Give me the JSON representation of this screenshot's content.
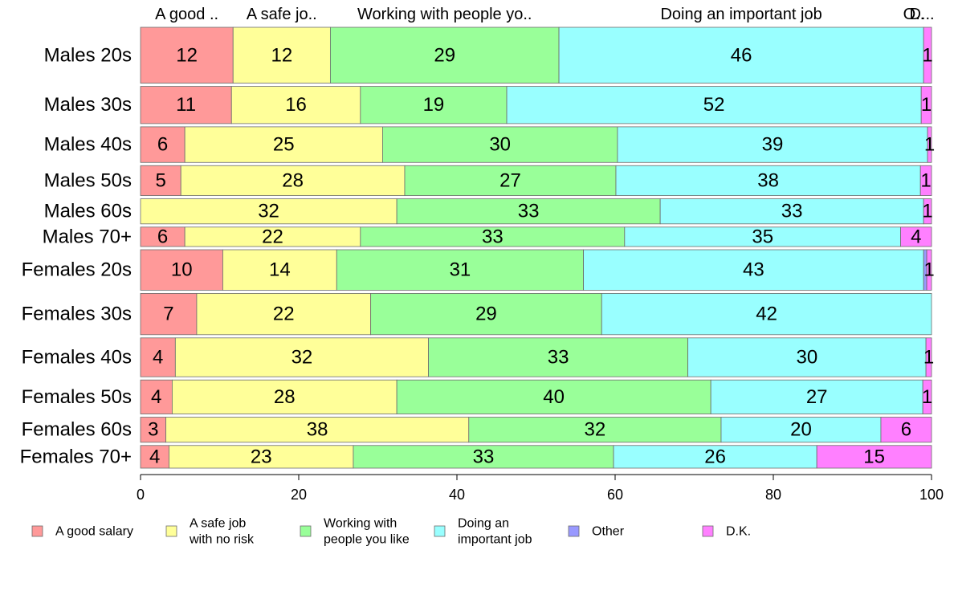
{
  "chart_data": {
    "type": "bar",
    "orientation": "horizontal",
    "stacked": true,
    "categories": [
      "Males 20s",
      "Males 30s",
      "Males 40s",
      "Males 50s",
      "Males 60s",
      "Males 70+",
      "Females 20s",
      "Females 30s",
      "Females 40s",
      "Females 50s",
      "Females 60s",
      "Females 70+"
    ],
    "row_weights": [
      69,
      46,
      44,
      37,
      31,
      24,
      50,
      51,
      48,
      42,
      31,
      28
    ],
    "series": [
      {
        "name": "A good salary",
        "legend": [
          "A good salary"
        ],
        "column_label": "A good ..",
        "color": "#ff9999",
        "values": [
          11.7,
          11.5,
          5.6,
          5.1,
          0,
          5.6,
          10.4,
          7.1,
          4.4,
          4.0,
          3.2,
          3.6
        ],
        "labels": [
          "12",
          "11",
          "6",
          "5",
          "",
          "6",
          "10",
          "7",
          "4",
          "4",
          "3",
          "4"
        ]
      },
      {
        "name": "A safe job with no risk",
        "legend": [
          "A safe job",
          "with no risk"
        ],
        "column_label": "A safe jo..",
        "color": "#ffff99",
        "values": [
          12.3,
          16.3,
          25.0,
          28.3,
          32.4,
          22.2,
          14.4,
          22.0,
          32.0,
          28.4,
          38.3,
          23.3
        ],
        "labels": [
          "12",
          "16",
          "25",
          "28",
          "32",
          "22",
          "14",
          "22",
          "32",
          "28",
          "38",
          "23"
        ]
      },
      {
        "name": "Working with people you like",
        "legend": [
          "Working with",
          "people you like"
        ],
        "column_label": "Working with people yo..",
        "color": "#99ff99",
        "values": [
          28.9,
          18.5,
          29.7,
          26.7,
          33.3,
          33.4,
          31.2,
          29.2,
          32.8,
          39.7,
          31.9,
          32.9
        ],
        "labels": [
          "29",
          "19",
          "30",
          "27",
          "33",
          "33",
          "31",
          "29",
          "33",
          "40",
          "32",
          "33"
        ]
      },
      {
        "name": "Doing an important job",
        "legend": [
          "Doing an",
          "important job"
        ],
        "column_label": "Doing an important job",
        "color": "#99ffff",
        "values": [
          46.1,
          52.4,
          39.2,
          38.5,
          33.3,
          34.9,
          43.0,
          41.7,
          30.1,
          26.8,
          20.2,
          25.7
        ],
        "labels": [
          "46",
          "52",
          "39",
          "38",
          "33",
          "35",
          "43",
          "42",
          "30",
          "27",
          "20",
          "26"
        ]
      },
      {
        "name": "Other",
        "legend": [
          "Other"
        ],
        "column_label": "O..",
        "color": "#9999ff",
        "values": [
          0,
          0,
          0,
          0,
          0,
          0,
          0.4,
          0,
          0,
          0,
          0,
          0
        ],
        "labels": [
          "",
          "",
          "",
          "",
          "",
          "",
          "",
          "",
          "",
          "",
          "",
          ""
        ]
      },
      {
        "name": "D.K.",
        "legend": [
          "D.K."
        ],
        "column_label": "D...",
        "color": "#ff80ff",
        "values": [
          1.0,
          1.3,
          0.5,
          1.4,
          1.0,
          3.9,
          0.6,
          0,
          0.7,
          1.1,
          6.4,
          14.5
        ],
        "labels": [
          "1",
          "1",
          "1",
          "1",
          "1",
          "4",
          "1",
          "",
          "1",
          "1",
          "6",
          "15"
        ]
      }
    ],
    "xlim": [
      0,
      100
    ],
    "xticks": [
      0,
      20,
      40,
      60,
      80,
      100
    ],
    "xtick_labels": [
      "0",
      "20",
      "40",
      "60",
      "80",
      "100"
    ],
    "title": "",
    "xlabel": "",
    "ylabel": "",
    "legend_position": "bottom",
    "grid": false
  }
}
